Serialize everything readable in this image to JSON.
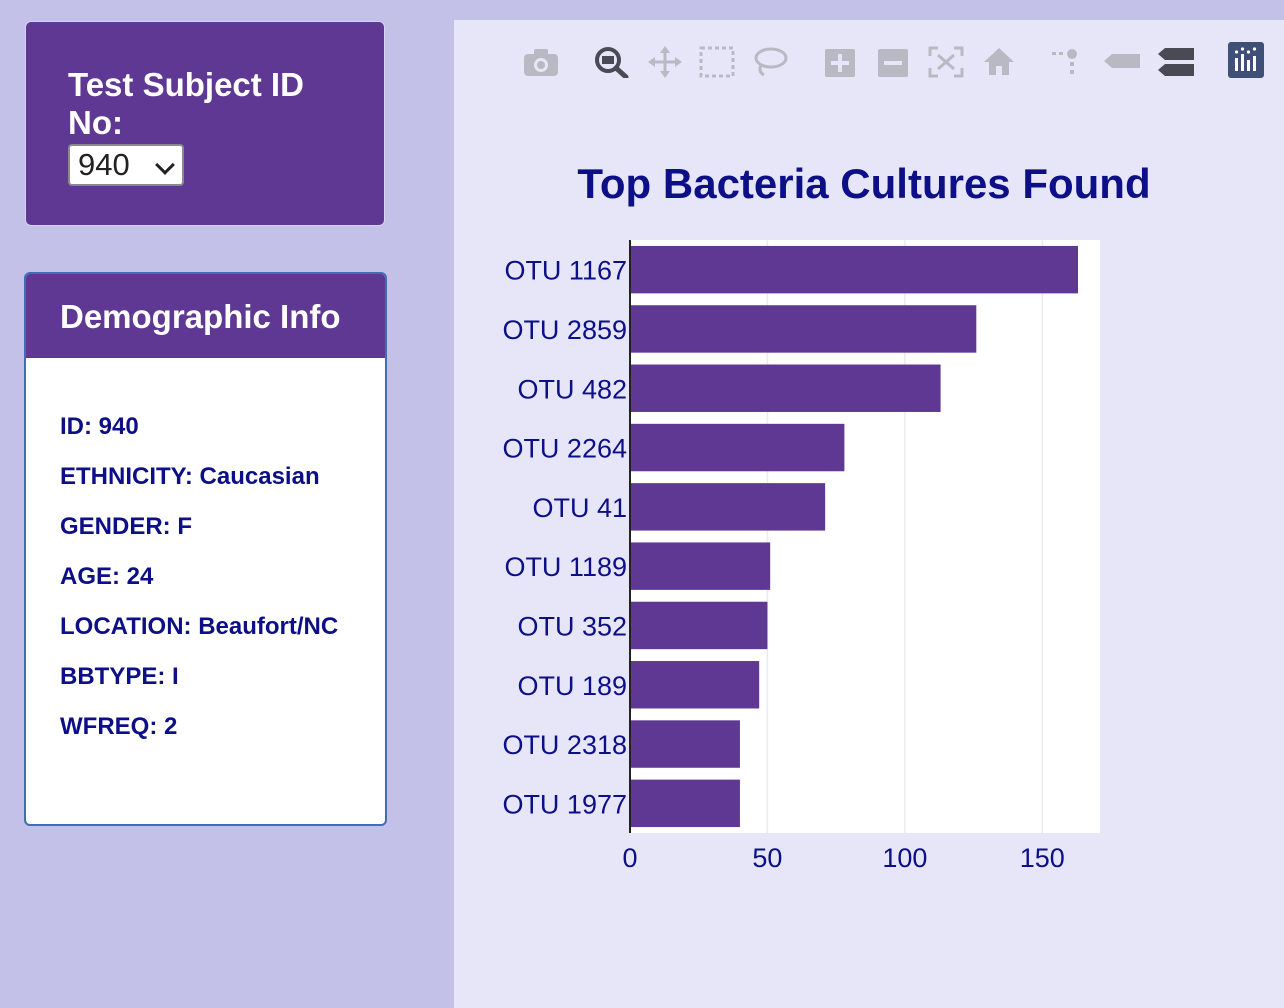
{
  "selector": {
    "label": "Test Subject ID No:",
    "selected_value": "940"
  },
  "demographics": {
    "title": "Demographic Info",
    "items": [
      "ID: 940",
      "ETHNICITY: Caucasian",
      "GENDER: F",
      "AGE: 24",
      "LOCATION: Beaufort/NC",
      "BBTYPE: I",
      "WFREQ: 2"
    ]
  },
  "modebar": {
    "icons": [
      "camera-icon",
      "zoom-icon",
      "pan-icon",
      "box-select-icon",
      "lasso-select-icon",
      "zoom-in-icon",
      "zoom-out-icon",
      "autoscale-icon",
      "reset-axes-icon",
      "spike-lines-icon",
      "hover-closest-icon",
      "hover-compare-icon",
      "plotly-logo-icon"
    ]
  },
  "colors": {
    "bar": "#5e3893",
    "title": "#0d0f86",
    "background": "#c3c1e8",
    "chart_background": "#e6e6f8"
  },
  "chart_data": {
    "type": "bar",
    "orientation": "horizontal",
    "title": "Top Bacteria Cultures Found",
    "categories": [
      "OTU 1167",
      "OTU 2859",
      "OTU 482",
      "OTU 2264",
      "OTU 41",
      "OTU 1189",
      "OTU 352",
      "OTU 189",
      "OTU 2318",
      "OTU 1977"
    ],
    "values": [
      163,
      126,
      113,
      78,
      71,
      51,
      50,
      47,
      40,
      40
    ],
    "xlim": [
      0,
      171
    ],
    "xticks": [
      "0",
      "50",
      "100",
      "150"
    ],
    "grid": true
  }
}
